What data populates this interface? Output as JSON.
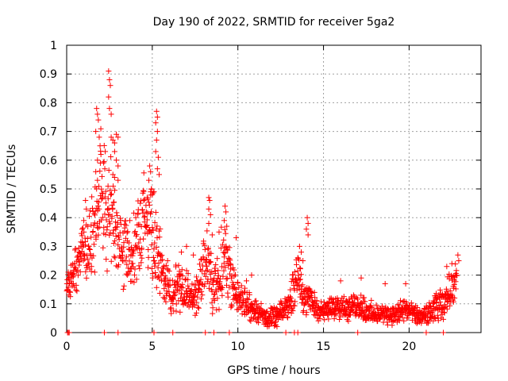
{
  "chart_data": {
    "type": "scatter",
    "title": "Day 190 of 2022, SRMTID for receiver 5ga2",
    "xlabel": "GPS time / hours",
    "ylabel": "SRMTID / TECUs",
    "xlim": [
      0,
      24.2
    ],
    "ylim": [
      0,
      1
    ],
    "x_ticks": [
      0,
      5,
      10,
      15,
      20
    ],
    "x_tick_labels": [
      "0",
      "5",
      "10",
      "15",
      "20"
    ],
    "y_ticks": [
      0,
      0.1,
      0.2,
      0.3,
      0.4,
      0.5,
      0.6,
      0.7,
      0.8,
      0.9,
      1
    ],
    "y_tick_labels": [
      "0",
      "0.1",
      "0.2",
      "0.3",
      "0.4",
      "0.5",
      "0.6",
      "0.7",
      "0.8",
      "0.9",
      "1"
    ],
    "grid": true,
    "marker": "+",
    "color": "#ff0000",
    "series": [
      {
        "name": "SRMTID",
        "x": [
          0.0,
          0.1,
          0.2,
          0.3,
          0.4,
          0.5,
          0.6,
          0.7,
          0.8,
          0.9,
          1.0,
          1.1,
          1.2,
          1.3,
          1.4,
          1.5,
          1.6,
          1.7,
          1.8,
          1.9,
          2.0,
          2.1,
          2.2,
          2.3,
          2.4,
          2.5,
          2.6,
          2.7,
          2.8,
          2.9,
          3.0,
          3.1,
          3.2,
          3.3,
          3.4,
          3.5,
          3.6,
          3.7,
          3.8,
          3.9,
          4.0,
          4.1,
          4.2,
          4.3,
          4.4,
          4.5,
          4.6,
          4.7,
          4.8,
          4.9,
          5.0,
          5.1,
          5.2,
          5.3,
          5.4,
          5.5,
          5.6,
          5.7,
          5.8,
          5.9,
          6.0,
          6.2,
          6.4,
          6.6,
          6.8,
          7.0,
          7.2,
          7.4,
          7.6,
          7.8,
          8.0,
          8.2,
          8.4,
          8.6,
          8.8,
          9.0,
          9.2,
          9.4,
          9.6,
          9.8,
          10.0,
          10.3,
          10.6,
          10.9,
          11.2,
          11.5,
          11.8,
          12.1,
          12.4,
          12.7,
          13.0,
          13.2,
          13.4,
          13.6,
          13.8,
          14.0,
          14.2,
          14.4,
          14.7,
          15.0,
          15.3,
          15.6,
          15.9,
          16.2,
          16.5,
          16.8,
          17.1,
          17.4,
          17.7,
          18.0,
          18.3,
          18.6,
          18.9,
          19.2,
          19.5,
          19.8,
          20.1,
          20.4,
          20.7,
          21.0,
          21.3,
          21.6,
          21.9,
          22.2,
          22.4,
          22.6,
          22.8
        ],
        "y": [
          0.14,
          0.18,
          0.16,
          0.21,
          0.19,
          0.23,
          0.2,
          0.29,
          0.26,
          0.33,
          0.24,
          0.3,
          0.27,
          0.35,
          0.31,
          0.37,
          0.33,
          0.42,
          0.4,
          0.48,
          0.52,
          0.46,
          0.5,
          0.44,
          0.41,
          0.47,
          0.43,
          0.39,
          0.36,
          0.34,
          0.32,
          0.3,
          0.28,
          0.26,
          0.31,
          0.28,
          0.3,
          0.27,
          0.25,
          0.29,
          0.3,
          0.33,
          0.36,
          0.34,
          0.38,
          0.41,
          0.37,
          0.4,
          0.39,
          0.43,
          0.38,
          0.33,
          0.3,
          0.27,
          0.25,
          0.23,
          0.21,
          0.2,
          0.18,
          0.16,
          0.15,
          0.14,
          0.16,
          0.17,
          0.15,
          0.14,
          0.13,
          0.12,
          0.14,
          0.16,
          0.2,
          0.24,
          0.19,
          0.16,
          0.18,
          0.22,
          0.27,
          0.24,
          0.2,
          0.15,
          0.13,
          0.11,
          0.09,
          0.08,
          0.07,
          0.06,
          0.05,
          0.05,
          0.06,
          0.08,
          0.1,
          0.14,
          0.18,
          0.22,
          0.14,
          0.1,
          0.13,
          0.1,
          0.08,
          0.07,
          0.08,
          0.09,
          0.1,
          0.09,
          0.08,
          0.09,
          0.1,
          0.08,
          0.07,
          0.06,
          0.06,
          0.07,
          0.06,
          0.06,
          0.07,
          0.08,
          0.07,
          0.06,
          0.05,
          0.06,
          0.07,
          0.09,
          0.1,
          0.12,
          0.15,
          0.17,
          0.2
        ],
        "spread": [
          0.05,
          0.06,
          0.07,
          0.08,
          0.08,
          0.08,
          0.09,
          0.1,
          0.1,
          0.11,
          0.12,
          0.12,
          0.13,
          0.14,
          0.15,
          0.16,
          0.17,
          0.18,
          0.2,
          0.23,
          0.25,
          0.27,
          0.28,
          0.26,
          0.25,
          0.24,
          0.23,
          0.22,
          0.2,
          0.18,
          0.16,
          0.15,
          0.14,
          0.14,
          0.15,
          0.16,
          0.16,
          0.15,
          0.14,
          0.15,
          0.15,
          0.16,
          0.17,
          0.17,
          0.18,
          0.19,
          0.19,
          0.2,
          0.21,
          0.22,
          0.22,
          0.21,
          0.19,
          0.16,
          0.14,
          0.13,
          0.12,
          0.12,
          0.11,
          0.1,
          0.1,
          0.09,
          0.1,
          0.11,
          0.1,
          0.09,
          0.09,
          0.09,
          0.1,
          0.12,
          0.14,
          0.14,
          0.13,
          0.12,
          0.14,
          0.15,
          0.15,
          0.14,
          0.12,
          0.1,
          0.08,
          0.07,
          0.06,
          0.05,
          0.05,
          0.04,
          0.04,
          0.04,
          0.04,
          0.05,
          0.06,
          0.08,
          0.1,
          0.1,
          0.08,
          0.06,
          0.06,
          0.05,
          0.04,
          0.04,
          0.05,
          0.05,
          0.06,
          0.05,
          0.05,
          0.05,
          0.06,
          0.05,
          0.05,
          0.04,
          0.04,
          0.04,
          0.04,
          0.04,
          0.05,
          0.05,
          0.04,
          0.04,
          0.03,
          0.04,
          0.05,
          0.06,
          0.06,
          0.07,
          0.08,
          0.08,
          0.08
        ],
        "peaks": [
          {
            "x": 2.45,
            "y": 0.91
          },
          {
            "x": 2.5,
            "y": 0.88
          },
          {
            "x": 2.55,
            "y": 0.86
          },
          {
            "x": 2.45,
            "y": 0.82
          },
          {
            "x": 2.5,
            "y": 0.78
          },
          {
            "x": 2.6,
            "y": 0.76
          },
          {
            "x": 1.75,
            "y": 0.78
          },
          {
            "x": 1.8,
            "y": 0.76
          },
          {
            "x": 1.85,
            "y": 0.74
          },
          {
            "x": 1.7,
            "y": 0.7
          },
          {
            "x": 1.9,
            "y": 0.68
          },
          {
            "x": 1.95,
            "y": 0.65
          },
          {
            "x": 2.0,
            "y": 0.62
          },
          {
            "x": 1.8,
            "y": 0.6
          },
          {
            "x": 2.6,
            "y": 0.68
          },
          {
            "x": 2.7,
            "y": 0.67
          },
          {
            "x": 2.8,
            "y": 0.66
          },
          {
            "x": 2.9,
            "y": 0.69
          },
          {
            "x": 3.0,
            "y": 0.68
          },
          {
            "x": 2.8,
            "y": 0.63
          },
          {
            "x": 2.9,
            "y": 0.6
          },
          {
            "x": 3.0,
            "y": 0.58
          },
          {
            "x": 2.7,
            "y": 0.55
          },
          {
            "x": 2.8,
            "y": 0.54
          },
          {
            "x": 3.0,
            "y": 0.53
          },
          {
            "x": 1.7,
            "y": 0.56
          },
          {
            "x": 1.8,
            "y": 0.53
          },
          {
            "x": 5.25,
            "y": 0.77
          },
          {
            "x": 5.3,
            "y": 0.75
          },
          {
            "x": 5.2,
            "y": 0.73
          },
          {
            "x": 5.3,
            "y": 0.7
          },
          {
            "x": 5.25,
            "y": 0.67
          },
          {
            "x": 5.2,
            "y": 0.63
          },
          {
            "x": 5.35,
            "y": 0.61
          },
          {
            "x": 5.3,
            "y": 0.57
          },
          {
            "x": 5.4,
            "y": 0.55
          },
          {
            "x": 4.85,
            "y": 0.58
          },
          {
            "x": 4.9,
            "y": 0.56
          },
          {
            "x": 4.8,
            "y": 0.53
          },
          {
            "x": 4.95,
            "y": 0.5
          },
          {
            "x": 5.0,
            "y": 0.48
          },
          {
            "x": 4.7,
            "y": 0.47
          },
          {
            "x": 4.5,
            "y": 0.46
          },
          {
            "x": 4.3,
            "y": 0.45
          },
          {
            "x": 5.1,
            "y": 0.49
          },
          {
            "x": 8.3,
            "y": 0.47
          },
          {
            "x": 8.35,
            "y": 0.46
          },
          {
            "x": 8.3,
            "y": 0.43
          },
          {
            "x": 8.4,
            "y": 0.41
          },
          {
            "x": 8.3,
            "y": 0.38
          },
          {
            "x": 9.25,
            "y": 0.44
          },
          {
            "x": 9.3,
            "y": 0.42
          },
          {
            "x": 9.2,
            "y": 0.39
          },
          {
            "x": 9.35,
            "y": 0.37
          },
          {
            "x": 8.9,
            "y": 0.35
          },
          {
            "x": 8.5,
            "y": 0.34
          },
          {
            "x": 9.9,
            "y": 0.33
          },
          {
            "x": 14.05,
            "y": 0.4
          },
          {
            "x": 14.1,
            "y": 0.38
          },
          {
            "x": 14.0,
            "y": 0.36
          },
          {
            "x": 14.1,
            "y": 0.34
          },
          {
            "x": 13.6,
            "y": 0.3
          },
          {
            "x": 13.7,
            "y": 0.28
          },
          {
            "x": 13.5,
            "y": 0.26
          },
          {
            "x": 13.8,
            "y": 0.25
          },
          {
            "x": 1.1,
            "y": 0.46
          },
          {
            "x": 1.15,
            "y": 0.43
          },
          {
            "x": 1.0,
            "y": 0.39
          },
          {
            "x": 0.9,
            "y": 0.36
          },
          {
            "x": 22.5,
            "y": 0.24
          },
          {
            "x": 22.85,
            "y": 0.27
          },
          {
            "x": 22.9,
            "y": 0.25
          },
          {
            "x": 22.2,
            "y": 0.23
          },
          {
            "x": 17.2,
            "y": 0.19
          },
          {
            "x": 18.6,
            "y": 0.17
          },
          {
            "x": 19.8,
            "y": 0.17
          },
          {
            "x": 16.0,
            "y": 0.18
          },
          {
            "x": 7.0,
            "y": 0.3
          },
          {
            "x": 6.7,
            "y": 0.28
          },
          {
            "x": 7.4,
            "y": 0.27
          },
          {
            "x": 10.8,
            "y": 0.2
          },
          {
            "x": 10.5,
            "y": 0.18
          }
        ],
        "zeros": [
          0.05,
          0.1,
          0.15,
          2.2,
          3.0,
          5.1,
          6.2,
          8.1,
          8.6,
          9.5,
          12.8,
          13.3,
          13.5,
          17.0,
          21.0,
          22.0
        ]
      }
    ]
  }
}
